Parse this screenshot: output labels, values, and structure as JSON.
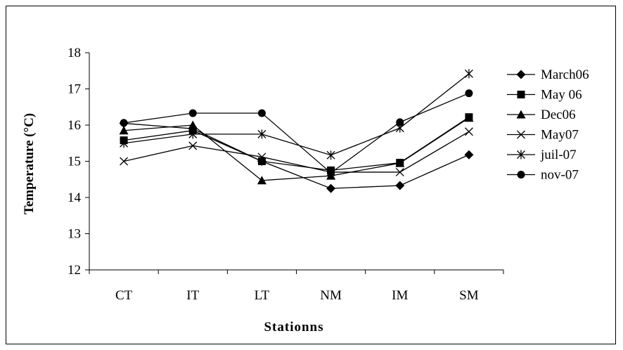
{
  "chart_data": {
    "type": "line",
    "title": "",
    "xlabel": "Stationns",
    "ylabel": "Temperature (°C)",
    "ylim": [
      12,
      18
    ],
    "yticks": [
      "12",
      "13",
      "14",
      "15",
      "16",
      "17",
      "18"
    ],
    "categories": [
      "CT",
      "IT",
      "LT",
      "NM",
      "IM",
      "SM"
    ],
    "legend_position": "right",
    "grid": false,
    "series": [
      {
        "name": "March06",
        "marker": "diamond",
        "values": [
          16.05,
          15.9,
          15.0,
          14.25,
          14.33,
          15.18
        ]
      },
      {
        "name": "May 06",
        "marker": "square",
        "values": [
          15.58,
          15.85,
          15.0,
          14.75,
          14.96,
          16.22
        ]
      },
      {
        "name": "Dec06",
        "marker": "triangle",
        "values": [
          15.85,
          16.0,
          14.47,
          14.6,
          14.95,
          16.2
        ]
      },
      {
        "name": "May07",
        "marker": "x",
        "values": [
          15.0,
          15.43,
          15.12,
          14.7,
          14.7,
          15.82
        ]
      },
      {
        "name": "juil-07",
        "marker": "star",
        "values": [
          15.5,
          15.75,
          15.75,
          15.17,
          15.92,
          17.42
        ]
      },
      {
        "name": "nov-07",
        "marker": "circle",
        "values": [
          16.06,
          16.33,
          16.33,
          14.68,
          16.08,
          16.88
        ]
      }
    ]
  }
}
